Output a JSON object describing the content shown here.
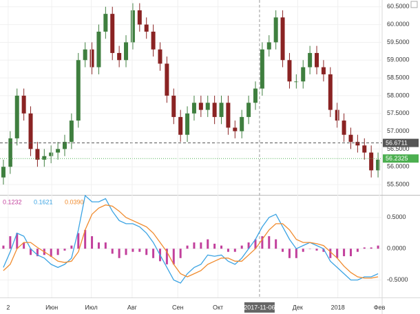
{
  "chart_data": [
    {
      "type": "candlestick",
      "open": [
        55.7,
        56.0,
        56.8,
        58.0,
        57.5,
        56.5,
        56.2,
        56.3,
        56.4,
        56.5,
        56.7,
        57.3,
        59.0,
        59.3,
        58.8,
        59.8,
        60.3,
        59.2,
        59.0,
        59.5,
        60.4,
        60.0,
        59.8,
        59.3,
        58.9,
        58.0,
        57.4,
        56.9,
        57.5,
        57.8,
        57.6,
        57.8,
        57.4,
        57.8,
        57.1,
        57.0,
        57.4,
        57.8,
        58.2,
        59.3,
        59.5,
        60.2,
        59.0,
        58.4,
        58.4,
        58.8,
        59.2,
        58.8,
        58.6,
        57.6,
        57.3,
        56.9,
        56.7,
        56.6,
        56.4,
        55.9
      ],
      "high": [
        56.2,
        57.0,
        58.2,
        58.2,
        57.7,
        56.7,
        56.5,
        56.6,
        56.7,
        56.9,
        57.5,
        59.2,
        59.5,
        59.5,
        60.0,
        60.5,
        60.5,
        59.4,
        59.7,
        60.6,
        60.6,
        60.2,
        60.0,
        59.5,
        59.1,
        58.2,
        57.6,
        57.7,
        58.0,
        58.0,
        58.0,
        58.0,
        58.0,
        58.0,
        57.3,
        57.6,
        58.0,
        58.4,
        59.5,
        59.7,
        60.4,
        60.4,
        59.2,
        58.6,
        59.0,
        59.4,
        59.4,
        59.0,
        58.8,
        57.8,
        57.5,
        57.1,
        56.9,
        56.8,
        56.6,
        56.4
      ],
      "low": [
        55.5,
        55.8,
        56.6,
        57.3,
        56.3,
        56.0,
        56.0,
        56.1,
        56.2,
        56.3,
        56.5,
        57.1,
        58.8,
        58.6,
        58.6,
        59.6,
        59.0,
        58.8,
        58.8,
        59.3,
        59.8,
        59.6,
        59.1,
        58.7,
        57.8,
        57.2,
        56.7,
        56.7,
        57.3,
        57.4,
        57.4,
        57.2,
        57.2,
        56.9,
        56.8,
        56.8,
        57.2,
        57.6,
        58.0,
        59.1,
        59.3,
        58.8,
        58.2,
        58.2,
        58.2,
        58.6,
        58.6,
        58.4,
        57.4,
        57.1,
        56.7,
        56.5,
        56.4,
        56.2,
        55.7,
        55.7
      ],
      "close": [
        56.0,
        56.8,
        58.0,
        57.5,
        56.5,
        56.2,
        56.3,
        56.4,
        56.5,
        56.7,
        57.3,
        59.0,
        59.3,
        58.8,
        59.8,
        60.3,
        59.2,
        59.0,
        59.5,
        60.4,
        60.0,
        59.8,
        59.3,
        58.9,
        58.0,
        57.4,
        56.9,
        57.5,
        57.8,
        57.6,
        57.8,
        57.4,
        57.8,
        57.1,
        57.0,
        57.4,
        57.8,
        58.2,
        59.3,
        59.5,
        60.2,
        59.0,
        58.4,
        58.4,
        58.8,
        59.2,
        58.8,
        58.6,
        57.6,
        57.3,
        56.9,
        56.7,
        56.6,
        56.4,
        55.9,
        56.2
      ],
      "up_color": "#3f7f3f",
      "down_color": "#8a2323",
      "xlim": [
        -0.5,
        55.6
      ],
      "ylim": [
        55.21,
        60.69
      ],
      "yticks": [
        {
          "value": 55.5,
          "label": "55.5000"
        },
        {
          "value": 56,
          "label": "56.0000"
        },
        {
          "value": 56.5,
          "label": "56.5000"
        },
        {
          "value": 57,
          "label": "57.0000"
        },
        {
          "value": 57.5,
          "label": "57.5000"
        },
        {
          "value": 58,
          "label": "58.0000"
        },
        {
          "value": 58.5,
          "label": "58.5000"
        },
        {
          "value": 59,
          "label": "59.0000"
        },
        {
          "value": 59.5,
          "label": "59.5000"
        },
        {
          "value": 60,
          "label": "60.0000"
        },
        {
          "value": 60.5,
          "label": "60.5000"
        }
      ],
      "grid": true,
      "price_lines": [
        {
          "value": 56.6711,
          "color": "#555555",
          "style": "dashed"
        },
        {
          "value": 56.2325,
          "color": "#4caf50",
          "style": "dotted"
        }
      ]
    },
    {
      "type": "line",
      "series": [
        {
          "style": "histogram",
          "color": "#c2409c",
          "current": 0.1232,
          "values": [
            0.05,
            0.2,
            0.25,
            0.1,
            -0.1,
            -0.12,
            -0.1,
            -0.13,
            -0.1,
            -0.03,
            0.05,
            0.25,
            0.3,
            0.2,
            0.1,
            0.1,
            -0.08,
            -0.15,
            -0.1,
            -0.05,
            -0.05,
            -0.1,
            -0.15,
            -0.2,
            -0.25,
            -0.25,
            -0.15,
            0.05,
            0.1,
            0.1,
            0.15,
            0.08,
            0.05,
            -0.05,
            -0.05,
            0.05,
            0.1,
            0.15,
            0.2,
            0.2,
            0.15,
            -0.05,
            -0.15,
            -0.15,
            -0.05,
            0,
            -0.03,
            -0.05,
            -0.15,
            -0.15,
            -0.12,
            -0.12,
            -0.05,
            0.02,
            0.02,
            0.05
          ]
        },
        {
          "style": "line",
          "color": "#3aa3e3",
          "current": 0.1621,
          "values": [
            -0.3,
            -0.05,
            0.25,
            0.2,
            0.0,
            -0.1,
            -0.15,
            -0.25,
            -0.3,
            -0.25,
            -0.15,
            0.3,
            0.85,
            0.75,
            0.75,
            0.8,
            0.6,
            0.45,
            0.4,
            0.4,
            0.35,
            0.25,
            0.1,
            -0.1,
            -0.3,
            -0.5,
            -0.55,
            -0.4,
            -0.3,
            -0.25,
            -0.1,
            -0.12,
            -0.1,
            -0.2,
            -0.25,
            -0.15,
            0.0,
            0.15,
            0.35,
            0.5,
            0.55,
            0.35,
            0.15,
            0.0,
            0.05,
            0.1,
            0.05,
            0.0,
            -0.2,
            -0.3,
            -0.4,
            -0.5,
            -0.5,
            -0.45,
            -0.45,
            -0.4
          ]
        },
        {
          "style": "line",
          "color": "#f08a2c",
          "current": {
            "value": 0.039,
            "label": "0.0390"
          },
          "values": [
            -0.35,
            -0.25,
            0.0,
            0.1,
            0.1,
            0.02,
            -0.05,
            -0.12,
            -0.2,
            -0.22,
            -0.2,
            -0.05,
            0.3,
            0.55,
            0.65,
            0.7,
            0.68,
            0.6,
            0.5,
            0.45,
            0.4,
            0.35,
            0.25,
            0.1,
            -0.05,
            -0.25,
            -0.4,
            -0.45,
            -0.4,
            -0.35,
            -0.25,
            -0.2,
            -0.15,
            -0.15,
            -0.2,
            -0.2,
            -0.1,
            0.0,
            0.15,
            0.3,
            0.4,
            0.4,
            0.3,
            0.15,
            0.1,
            0.1,
            0.08,
            0.05,
            -0.05,
            -0.15,
            -0.28,
            -0.38,
            -0.45,
            -0.47,
            -0.47,
            -0.45
          ]
        }
      ],
      "xlim": [
        -0.5,
        55.6
      ],
      "ylim": [
        -0.78,
        0.85
      ],
      "yticks": [
        {
          "value": -0.5,
          "label": "-0.5000"
        },
        {
          "value": 0,
          "label": "0.0000"
        },
        {
          "value": 0.5,
          "label": "0.5000"
        }
      ],
      "xticks": [
        {
          "value": 0.7,
          "label": "2"
        },
        {
          "value": 7.1,
          "label": "Июн"
        },
        {
          "value": 12.9,
          "label": "Июл"
        },
        {
          "value": 18.9,
          "label": "Авг"
        },
        {
          "value": 25.6,
          "label": "Сен"
        },
        {
          "value": 31.5,
          "label": "Окт"
        },
        {
          "value": 43.2,
          "label": "Дек"
        },
        {
          "value": 49.1,
          "label": "2018"
        },
        {
          "value": 55.2,
          "label": "Фев"
        }
      ],
      "grid": true,
      "crosshair": {
        "value": 37.6,
        "label": "2017-11-06"
      }
    }
  ]
}
